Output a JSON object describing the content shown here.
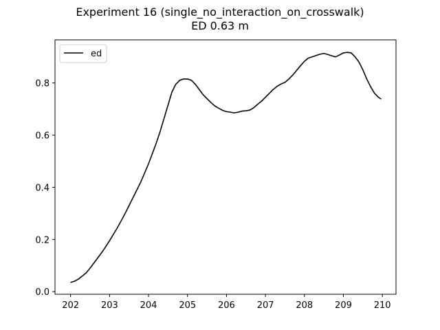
{
  "chart_data": {
    "type": "line",
    "title": "Experiment 16 (single_no_interaction_on_crosswalk)",
    "subtitle": "ED 0.63 m",
    "xlabel": "",
    "ylabel": "",
    "xlim": [
      201.6,
      210.35
    ],
    "ylim": [
      -0.01,
      0.965
    ],
    "xticks": [
      202,
      203,
      204,
      205,
      206,
      207,
      208,
      209,
      210
    ],
    "yticks": [
      0.0,
      0.2,
      0.4,
      0.6,
      0.8
    ],
    "grid": false,
    "legend": {
      "position": "top-left",
      "entries": [
        "ed"
      ]
    },
    "series": [
      {
        "name": "ed",
        "color": "#000000",
        "x": [
          202.0,
          202.1,
          202.2,
          202.3,
          202.4,
          202.5,
          202.6,
          202.7,
          202.8,
          202.9,
          203.0,
          203.1,
          203.2,
          203.3,
          203.4,
          203.5,
          203.6,
          203.7,
          203.8,
          203.9,
          204.0,
          204.1,
          204.2,
          204.3,
          204.4,
          204.5,
          204.6,
          204.7,
          204.8,
          204.9,
          205.0,
          205.1,
          205.2,
          205.3,
          205.4,
          205.5,
          205.6,
          205.7,
          205.8,
          205.9,
          206.0,
          206.1,
          206.2,
          206.3,
          206.4,
          206.5,
          206.6,
          206.7,
          206.8,
          206.9,
          207.0,
          207.1,
          207.2,
          207.3,
          207.4,
          207.5,
          207.6,
          207.7,
          207.8,
          207.9,
          208.0,
          208.1,
          208.2,
          208.3,
          208.4,
          208.5,
          208.6,
          208.7,
          208.8,
          208.9,
          209.0,
          209.1,
          209.2,
          209.3,
          209.4,
          209.5,
          209.6,
          209.7,
          209.8,
          209.9,
          209.97
        ],
        "y": [
          0.035,
          0.04,
          0.048,
          0.06,
          0.072,
          0.09,
          0.11,
          0.13,
          0.15,
          0.172,
          0.195,
          0.22,
          0.245,
          0.272,
          0.3,
          0.33,
          0.36,
          0.39,
          0.42,
          0.455,
          0.49,
          0.53,
          0.57,
          0.615,
          0.665,
          0.715,
          0.765,
          0.795,
          0.81,
          0.815,
          0.815,
          0.81,
          0.795,
          0.775,
          0.755,
          0.74,
          0.725,
          0.712,
          0.703,
          0.695,
          0.69,
          0.688,
          0.685,
          0.688,
          0.692,
          0.693,
          0.696,
          0.705,
          0.718,
          0.73,
          0.745,
          0.76,
          0.775,
          0.787,
          0.796,
          0.802,
          0.815,
          0.83,
          0.848,
          0.866,
          0.883,
          0.895,
          0.9,
          0.905,
          0.91,
          0.913,
          0.909,
          0.904,
          0.9,
          0.907,
          0.915,
          0.917,
          0.915,
          0.9,
          0.88,
          0.85,
          0.815,
          0.785,
          0.76,
          0.745,
          0.738
        ]
      }
    ]
  }
}
